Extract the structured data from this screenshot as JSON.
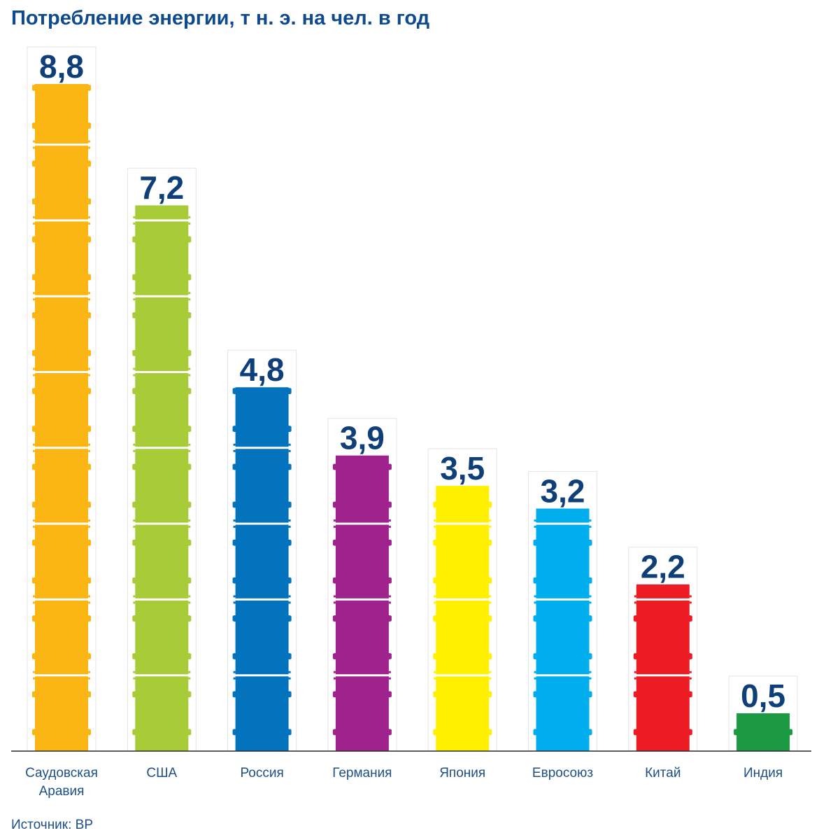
{
  "title": "Потребление энергии, т н. э. на чел. в год",
  "source": "Источник: BP",
  "chart_data": {
    "type": "bar",
    "title": "Потребление энергии, т н. э. на чел. в год",
    "xlabel": "",
    "ylabel": "",
    "ylim": [
      0,
      8.8
    ],
    "grid": false,
    "categories": [
      [
        "Саудовская",
        "Аравия"
      ],
      [
        "США"
      ],
      [
        "Россия"
      ],
      [
        "Германия"
      ],
      [
        "Япония"
      ],
      [
        "Евросоюз"
      ],
      [
        "Китай"
      ],
      [
        "Индия"
      ]
    ],
    "values": [
      8.8,
      7.2,
      4.8,
      3.9,
      3.5,
      3.2,
      2.2,
      0.5
    ],
    "value_labels": [
      "8,8",
      "7,2",
      "4,8",
      "3,9",
      "3,5",
      "3,2",
      "2,2",
      "0,5"
    ],
    "colors": [
      "#fcb614",
      "#a7cc38",
      "#0273bc",
      "#a0228c",
      "#fff100",
      "#00aeed",
      "#ed1c24",
      "#1c9a43"
    ],
    "unit": "т н. э. на чел. в год"
  }
}
